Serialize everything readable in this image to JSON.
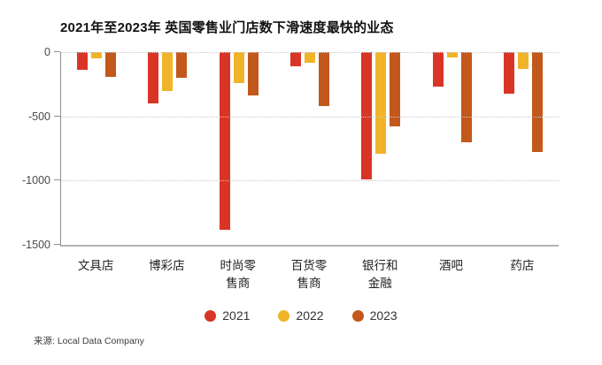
{
  "title": "2021年至2023年 英国零售业门店数下滑速度最快的业态",
  "source": "来源: Local Data Company",
  "colors": {
    "background": "#ffffff",
    "grid": "#c9c9c9",
    "axis": "#8f8f8f",
    "series_2021": "#d93526",
    "series_2022": "#f0b429",
    "series_2023": "#c2581b"
  },
  "chart_data": {
    "type": "bar",
    "title": "2021年至2023年 英国零售业门店数下滑速度最快的业态",
    "categories": [
      "文具店",
      "博彩店",
      "时尚零售商",
      "百货零售商",
      "银行和金融",
      "酒吧",
      "药店"
    ],
    "series": [
      {
        "name": "2021",
        "color": "#d93526",
        "values": [
          -140,
          -400,
          -1380,
          -110,
          -990,
          -270,
          -320
        ]
      },
      {
        "name": "2022",
        "color": "#f0b429",
        "values": [
          -50,
          -300,
          -240,
          -80,
          -790,
          -40,
          -130
        ]
      },
      {
        "name": "2023",
        "color": "#c2581b",
        "values": [
          -190,
          -200,
          -340,
          -420,
          -580,
          -700,
          -780
        ]
      }
    ],
    "xlabel": "",
    "ylabel": "",
    "ylim": [
      -1500,
      0
    ],
    "yticks": [
      0,
      -500,
      -1000,
      -1500
    ],
    "grid": "horizontal-dotted",
    "legend_position": "bottom-center"
  }
}
